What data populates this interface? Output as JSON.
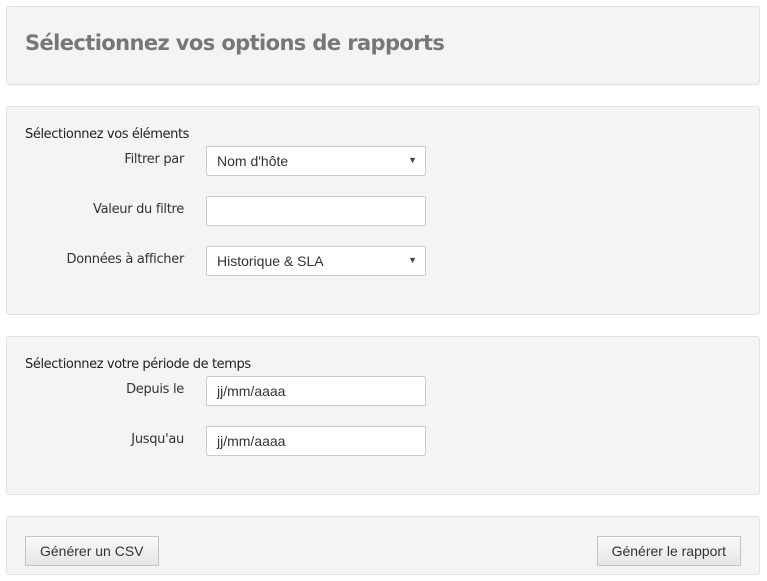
{
  "header": {
    "title": "Sélectionnez vos options de rapports"
  },
  "elements": {
    "section_title": "Sélectionnez vos éléments",
    "filter_by": {
      "label": "Filtrer par",
      "value": "Nom d'hôte"
    },
    "filter_value": {
      "label": "Valeur du filtre",
      "value": ""
    },
    "data_to_show": {
      "label": "Données à afficher",
      "value": "Historique & SLA"
    }
  },
  "period": {
    "section_title": "Sélectionnez votre période de temps",
    "from": {
      "label": "Depuis le",
      "value": "jj/mm/aaaa"
    },
    "to": {
      "label": "Jusqu'au",
      "value": "jj/mm/aaaa"
    }
  },
  "actions": {
    "csv_label": "Générer un CSV",
    "report_label": "Générer le rapport"
  }
}
